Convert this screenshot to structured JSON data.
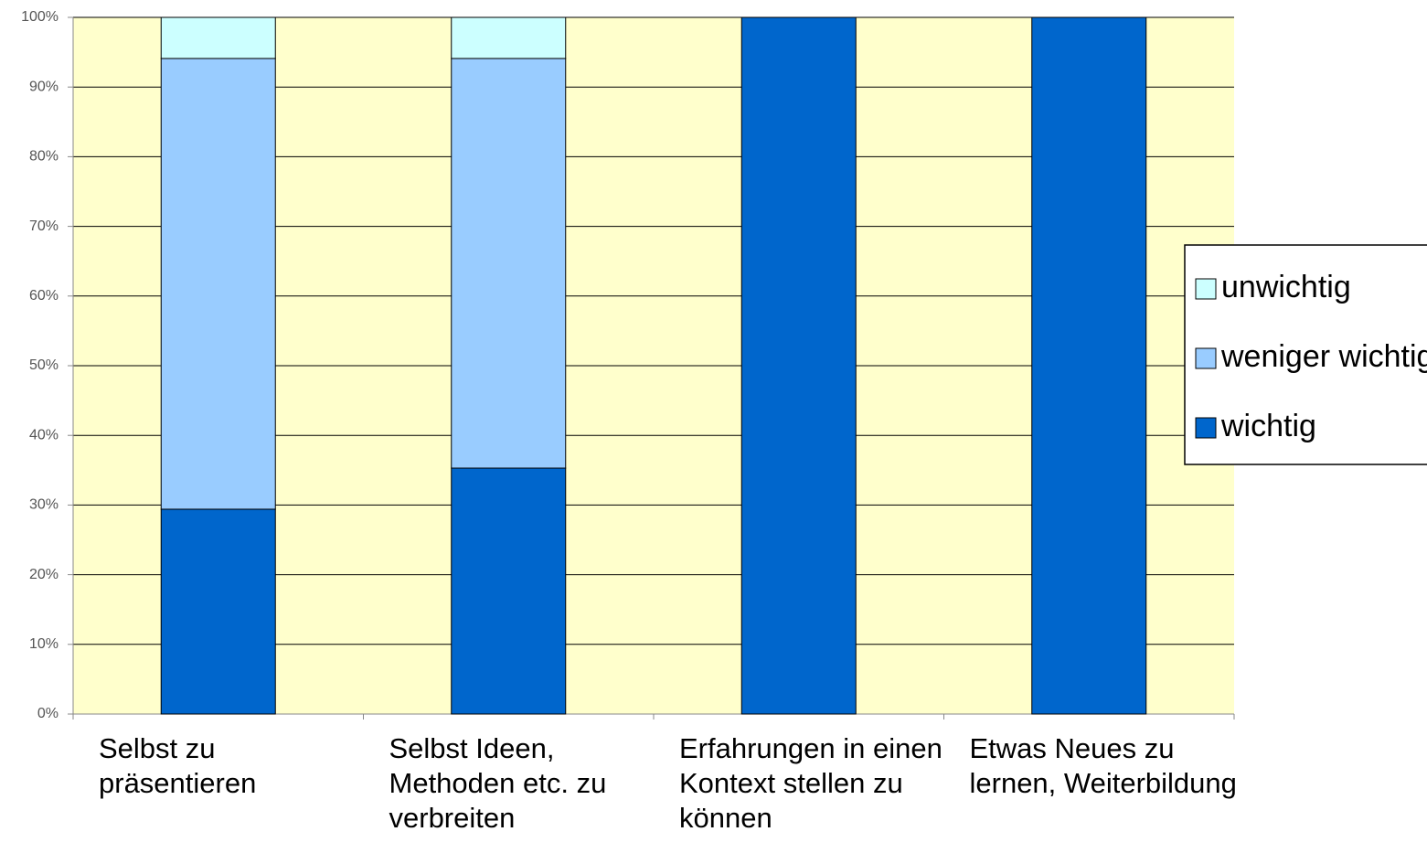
{
  "chart_data": {
    "type": "stacked_bar",
    "categories": [
      "Selbst zu präsentieren",
      "Selbst Ideen, Methoden etc. zu verbreiten",
      "Erfahrungen in einen Kontext stellen zu können",
      "Etwas Neues zu lernen, Weiterbildung"
    ],
    "series": [
      {
        "name": "wichtig",
        "color": "#0066cc",
        "values": [
          29.4,
          35.3,
          100,
          100
        ]
      },
      {
        "name": "weniger wichtig",
        "color": "#99ccff",
        "values": [
          64.7,
          58.8,
          0,
          0
        ]
      },
      {
        "name": "unwichtig",
        "color": "#ccffff",
        "values": [
          5.9,
          5.9,
          0,
          0
        ]
      }
    ],
    "ylim": [
      0,
      100
    ],
    "yticks": [
      {
        "value": 0,
        "label": "0%"
      },
      {
        "value": 10,
        "label": "10%"
      },
      {
        "value": 20,
        "label": "20%"
      },
      {
        "value": 30,
        "label": "30%"
      },
      {
        "value": 40,
        "label": "40%"
      },
      {
        "value": 50,
        "label": "50%"
      },
      {
        "value": 60,
        "label": "60%"
      },
      {
        "value": 70,
        "label": "70%"
      },
      {
        "value": 80,
        "label": "80%"
      },
      {
        "value": 90,
        "label": "90%"
      },
      {
        "value": 100,
        "label": "100%"
      }
    ],
    "grid": true,
    "legend": "right"
  }
}
